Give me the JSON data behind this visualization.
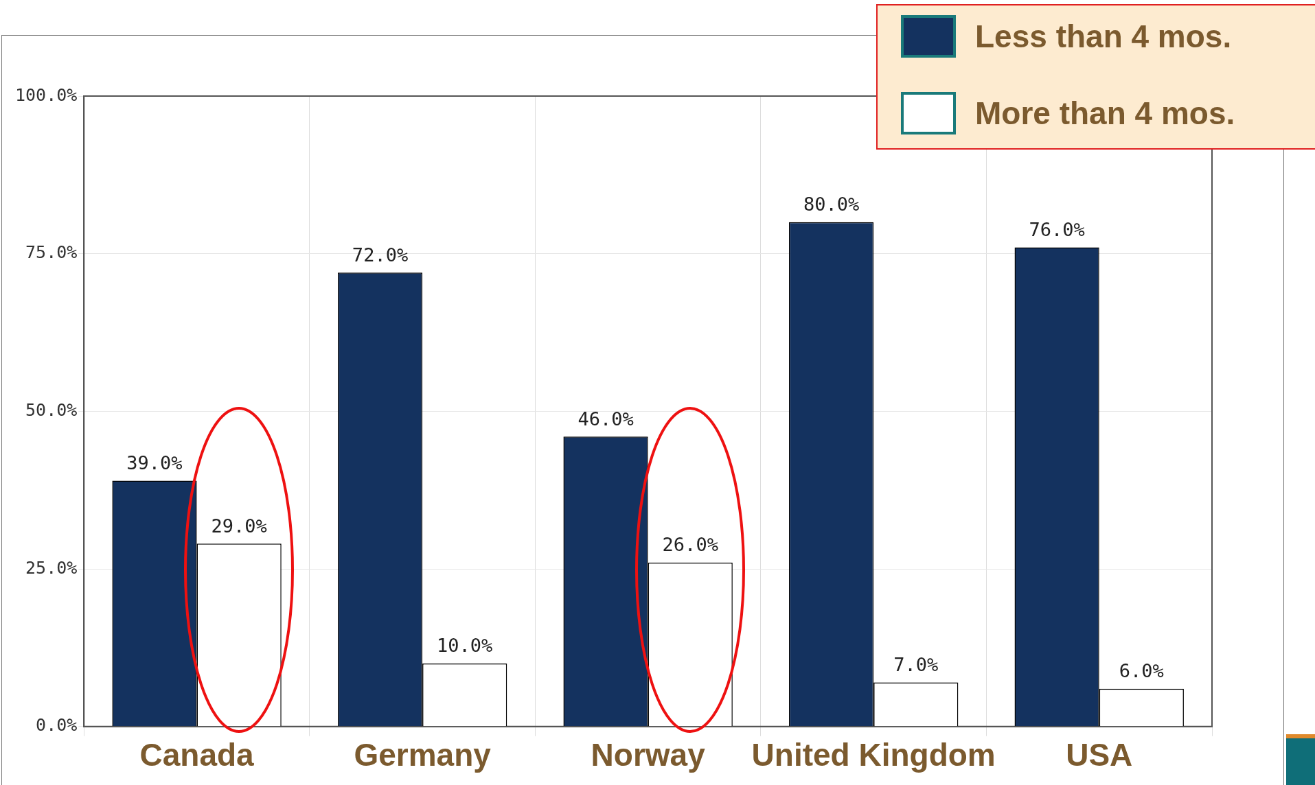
{
  "chart_data": {
    "type": "bar",
    "categories": [
      "Canada",
      "Germany",
      "Norway",
      "United Kingdom",
      "USA"
    ],
    "series": [
      {
        "name": "Less than 4 mos.",
        "color": "#14325f",
        "values": [
          39,
          72,
          46,
          80,
          76
        ],
        "value_labels": [
          "39.0%",
          "72.0%",
          "46.0%",
          "80.0%",
          "76.0%"
        ]
      },
      {
        "name": "More than 4 mos.",
        "color": "#ffffff",
        "values": [
          29,
          10,
          26,
          7,
          6
        ],
        "value_labels": [
          "29.0%",
          "10.0%",
          "26.0%",
          "7.0%",
          "6.0%"
        ]
      }
    ],
    "ylim": [
      0,
      100
    ],
    "yticks": [
      {
        "value": 0,
        "label": "0.0%"
      },
      {
        "value": 25,
        "label": "25.0%"
      },
      {
        "value": 50,
        "label": "50.0%"
      },
      {
        "value": 75,
        "label": "75.0%"
      },
      {
        "value": 100,
        "label": "100.0%"
      }
    ],
    "grid": true,
    "legend": "top right"
  }
}
